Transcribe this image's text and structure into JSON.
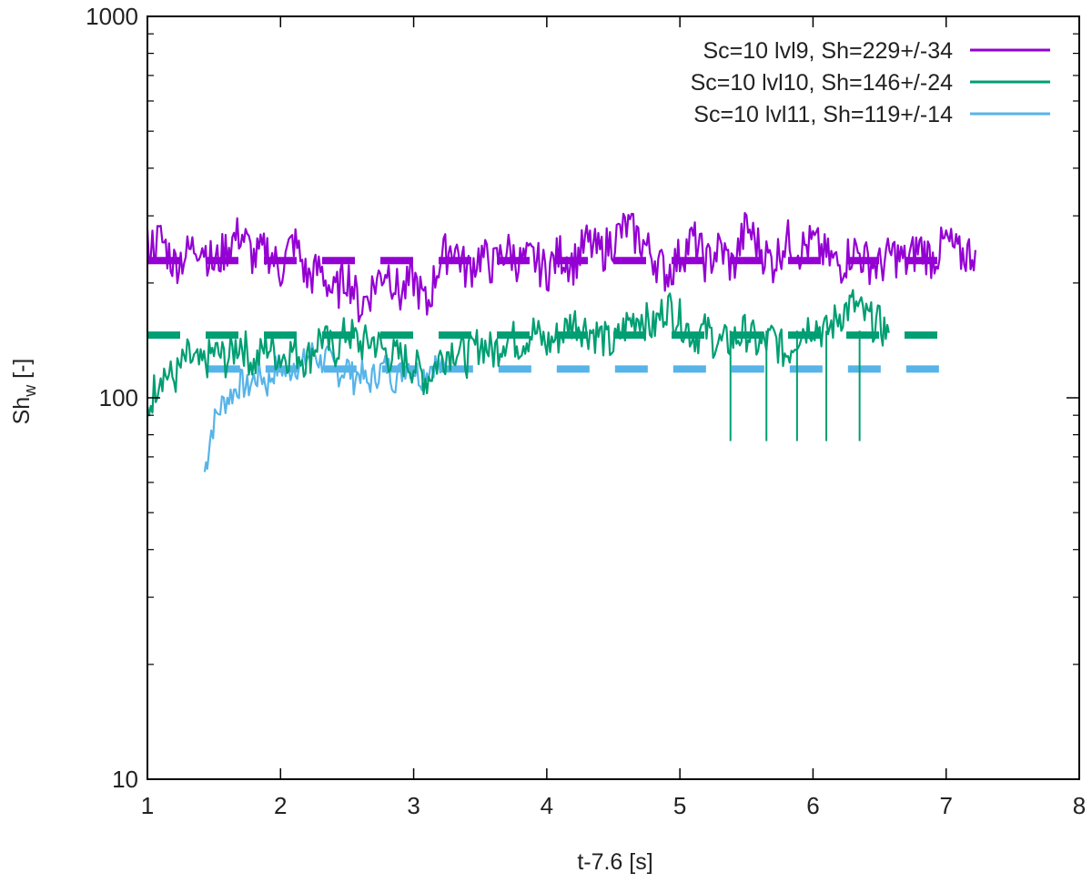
{
  "chart_data": {
    "type": "line",
    "title": "",
    "xlabel": "t-7.6 [s]",
    "ylabel_main": "Sh",
    "ylabel_sub": "w",
    "ylabel_unit": " [-]",
    "xlim": [
      1,
      8
    ],
    "ylim": [
      10,
      1000
    ],
    "yscale": "log",
    "grid": false,
    "legend_position": "top-right",
    "x_ticks": [
      1,
      2,
      3,
      4,
      5,
      6,
      7,
      8
    ],
    "y_ticks": [
      10,
      100,
      1000
    ],
    "colors": {
      "lvl9": "#9400d3",
      "lvl10": "#009e73",
      "lvl11": "#56b4e9",
      "axis": "#000000"
    },
    "series": [
      {
        "name": "Sc=10 lvl9, Sh=229+/-34",
        "color": "#9400d3",
        "mean": 229,
        "std": 34,
        "mean_x_range": [
          1.0,
          7.0
        ],
        "x": [
          1.0,
          1.1,
          1.2,
          1.3,
          1.4,
          1.5,
          1.6,
          1.7,
          1.8,
          1.9,
          2.0,
          2.1,
          2.2,
          2.3,
          2.4,
          2.5,
          2.6,
          2.7,
          2.8,
          2.9,
          3.0,
          3.1,
          3.2,
          3.3,
          3.4,
          3.5,
          3.6,
          3.7,
          3.8,
          3.9,
          4.0,
          4.1,
          4.2,
          4.3,
          4.4,
          4.5,
          4.6,
          4.7,
          4.8,
          4.9,
          5.0,
          5.1,
          5.2,
          5.3,
          5.4,
          5.5,
          5.6,
          5.7,
          5.8,
          5.9,
          6.0,
          6.1,
          6.2,
          6.3,
          6.4,
          6.5,
          6.6,
          6.7,
          6.8,
          6.9,
          7.0,
          7.1,
          7.22
        ],
        "values": [
          250,
          262,
          226,
          240,
          258,
          222,
          250,
          272,
          232,
          246,
          216,
          260,
          206,
          218,
          186,
          212,
          172,
          198,
          220,
          186,
          206,
          172,
          232,
          252,
          214,
          238,
          222,
          246,
          226,
          232,
          216,
          240,
          226,
          256,
          240,
          260,
          282,
          260,
          236,
          212,
          236,
          262,
          226,
          248,
          220,
          282,
          248,
          226,
          262,
          246,
          256,
          236,
          222,
          246,
          230,
          222,
          240,
          226,
          250,
          232,
          258,
          236,
          244
        ]
      },
      {
        "name": "Sc=10 lvl10, Sh=146+/-24",
        "color": "#009e73",
        "mean": 146,
        "std": 24,
        "mean_x_range": [
          1.0,
          7.0
        ],
        "x": [
          1.0,
          1.1,
          1.2,
          1.3,
          1.4,
          1.5,
          1.6,
          1.7,
          1.8,
          1.9,
          2.0,
          2.1,
          2.2,
          2.3,
          2.4,
          2.5,
          2.6,
          2.7,
          2.8,
          2.9,
          3.0,
          3.1,
          3.2,
          3.3,
          3.4,
          3.5,
          3.6,
          3.7,
          3.8,
          3.9,
          4.0,
          4.1,
          4.2,
          4.3,
          4.4,
          4.5,
          4.6,
          4.7,
          4.8,
          4.9,
          5.0,
          5.1,
          5.2,
          5.3,
          5.4,
          5.5,
          5.6,
          5.7,
          5.8,
          5.9,
          6.0,
          6.1,
          6.2,
          6.3,
          6.4,
          6.5,
          6.57
        ],
        "values": [
          92,
          118,
          112,
          128,
          120,
          132,
          126,
          142,
          122,
          138,
          128,
          134,
          126,
          146,
          132,
          150,
          138,
          142,
          130,
          128,
          122,
          112,
          128,
          136,
          128,
          140,
          132,
          146,
          140,
          150,
          138,
          146,
          160,
          152,
          146,
          136,
          156,
          166,
          152,
          176,
          162,
          146,
          150,
          138,
          142,
          150,
          136,
          144,
          130,
          150,
          158,
          148,
          166,
          176,
          162,
          156,
          148
        ]
      },
      {
        "name": "Sc=10 lvl11, Sh=119+/-14",
        "color": "#56b4e9",
        "mean": 119,
        "std": 14,
        "mean_x_range": [
          1.45,
          7.0
        ],
        "x": [
          1.43,
          1.45,
          1.48,
          1.52,
          1.56,
          1.6,
          1.65,
          1.7,
          1.75,
          1.8,
          1.85,
          1.9,
          1.95,
          2.0,
          2.05,
          2.1,
          2.15,
          2.2,
          2.25,
          2.3,
          2.35,
          2.4,
          2.45,
          2.5,
          2.55,
          2.6,
          2.65,
          2.7,
          2.75,
          2.8,
          2.85,
          2.9,
          2.95,
          3.0,
          3.05,
          3.1,
          3.15,
          3.2,
          3.24
        ],
        "values": [
          64,
          70,
          82,
          90,
          96,
          100,
          104,
          110,
          106,
          112,
          116,
          108,
          118,
          122,
          114,
          124,
          120,
          128,
          132,
          124,
          128,
          120,
          116,
          122,
          112,
          118,
          108,
          114,
          118,
          122,
          112,
          116,
          124,
          120,
          114,
          118,
          124,
          120,
          118
        ]
      }
    ]
  }
}
